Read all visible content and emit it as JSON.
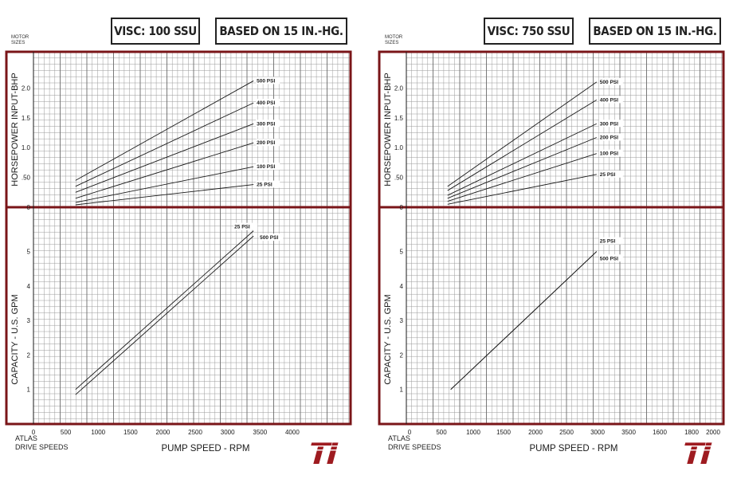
{
  "colors": {
    "frame": "#7a1518",
    "grid": "#9a9a9a",
    "ink": "#1a1a1a",
    "logo": "#9e1b20"
  },
  "logo_text": "TI",
  "charts": [
    {
      "visc_label": "VISC: 100 SSU",
      "based_label": "BASED ON 15 IN.-HG.",
      "motor_label": [
        "MOTOR",
        "SIZES"
      ],
      "atlas_label": [
        "ATLAS",
        "DRIVE SPEEDS"
      ]
    },
    {
      "visc_label": "VISC: 750 SSU",
      "based_label": "BASED ON 15 IN.-HG.",
      "motor_label": [
        "MOTOR",
        "SIZES"
      ],
      "atlas_label": [
        "ATLAS",
        "DRIVE SPEEDS"
      ]
    }
  ],
  "chart_data": [
    {
      "type": "line",
      "upper": {
        "ylabel": "HORSEPOWER INPUT-BHP",
        "ylim": [
          0,
          2.5
        ],
        "yticks": [
          "0",
          ".50",
          "1.0",
          "1.5",
          "2.0"
        ],
        "series": [
          {
            "name": "500 PSI",
            "x": [
              650,
              3400
            ],
            "y": [
              0.45,
              2.12
            ]
          },
          {
            "name": "400 PSI",
            "x": [
              650,
              3400
            ],
            "y": [
              0.35,
              1.75
            ]
          },
          {
            "name": "300 PSI",
            "x": [
              650,
              3400
            ],
            "y": [
              0.25,
              1.4
            ]
          },
          {
            "name": "200 PSI",
            "x": [
              650,
              3400
            ],
            "y": [
              0.15,
              1.08
            ]
          },
          {
            "name": "100 PSI",
            "x": [
              650,
              3400
            ],
            "y": [
              0.08,
              0.68
            ]
          },
          {
            "name": "25 PSI",
            "x": [
              650,
              3400
            ],
            "y": [
              0.04,
              0.38
            ]
          }
        ]
      },
      "lower": {
        "ylabel": "CAPACITY - U.S. GPM",
        "ylim": [
          0,
          6.1
        ],
        "yticks": [
          "1",
          "2",
          "3",
          "4",
          "5"
        ],
        "series": [
          {
            "name": "25 PSI",
            "x": [
              650,
              3400
            ],
            "y": [
              1.0,
              5.6
            ]
          },
          {
            "name": "500 PSI",
            "x": [
              650,
              3400
            ],
            "y": [
              0.85,
              5.45
            ]
          }
        ]
      },
      "xlabel": "PUMP SPEED - RPM",
      "xlim": [
        0,
        4900
      ],
      "xticks": [
        "0",
        "500",
        "1000",
        "1500",
        "2000",
        "2500",
        "3000",
        "3500",
        "4000"
      ]
    },
    {
      "type": "line",
      "upper": {
        "ylabel": "HORSEPOWER INPUT-BHP",
        "ylim": [
          0,
          2.5
        ],
        "yticks": [
          "0",
          ".50",
          "1.0",
          "1.5",
          "2.0"
        ],
        "series": [
          {
            "name": "500 PSI",
            "x": [
              650,
              3000
            ],
            "y": [
              0.35,
              2.1
            ]
          },
          {
            "name": "400 PSI",
            "x": [
              650,
              3000
            ],
            "y": [
              0.28,
              1.8
            ]
          },
          {
            "name": "300 PSI",
            "x": [
              650,
              3000
            ],
            "y": [
              0.2,
              1.4
            ]
          },
          {
            "name": "200 PSI",
            "x": [
              650,
              3000
            ],
            "y": [
              0.15,
              1.17
            ]
          },
          {
            "name": "100 PSI",
            "x": [
              650,
              3000
            ],
            "y": [
              0.1,
              0.9
            ]
          },
          {
            "name": "25 PSI",
            "x": [
              650,
              3000
            ],
            "y": [
              0.05,
              0.55
            ]
          }
        ]
      },
      "lower": {
        "ylabel": "CAPACITY - U.S. GPM",
        "ylim": [
          0,
          6.1
        ],
        "yticks": [
          "1",
          "2",
          "3",
          "4",
          "5"
        ],
        "series": [
          {
            "name": "25 PSI",
            "x": [
              700,
              3000
            ],
            "y": [
              1.0,
              5.0
            ]
          },
          {
            "name": "500 PSI",
            "x": [
              700,
              3000
            ],
            "y": [
              1.0,
              5.0
            ]
          }
        ],
        "label_y": [
          5.3,
          4.8
        ]
      },
      "xlabel": "PUMP SPEED - RPM",
      "xlim": [
        0,
        5000
      ],
      "xticks": [
        "0",
        "500",
        "1000",
        "1500",
        "2000",
        "2500",
        "3000",
        "3500",
        "1600",
        "1800",
        "2000"
      ]
    }
  ]
}
